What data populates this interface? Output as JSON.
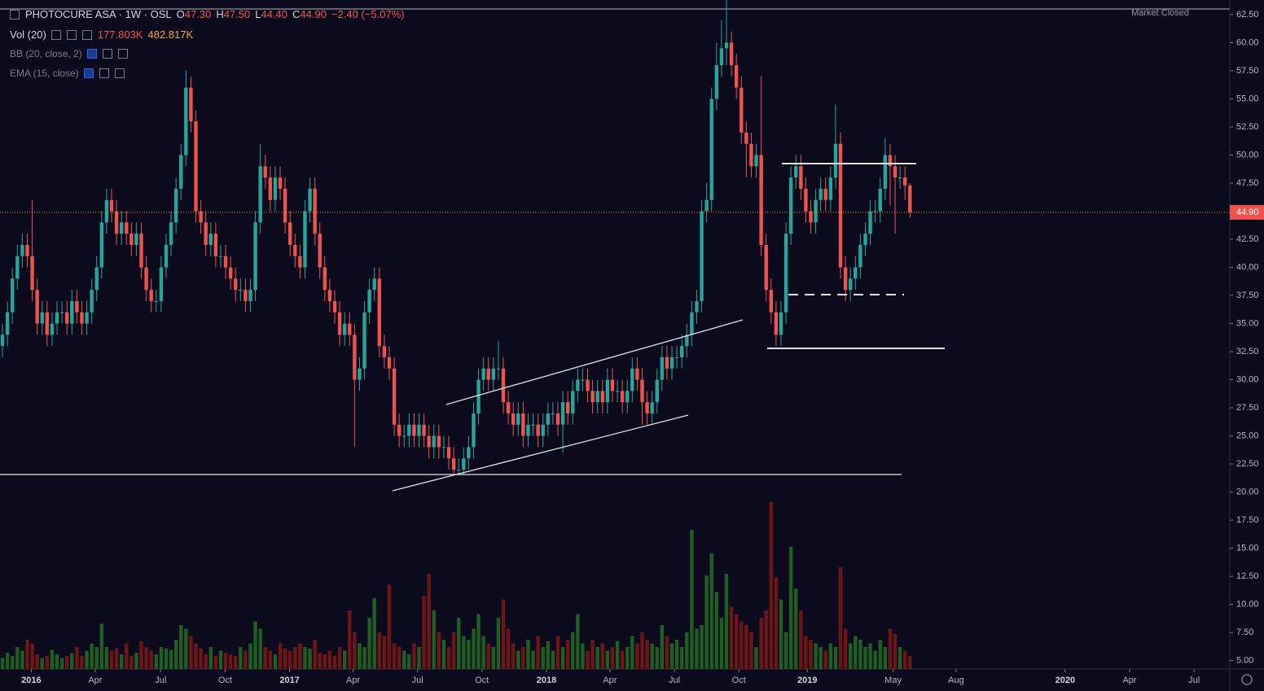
{
  "chart_data": {
    "type": "candlestick",
    "title": "PHOTOCURE ASA · 1W · OSL",
    "legend": {
      "open_key": "O",
      "open": "47.30",
      "high_key": "H",
      "high": "47.50",
      "low_key": "L",
      "low": "44.40",
      "close_key": "C",
      "close": "44.90",
      "change": "−2.40 (−5.07%)",
      "volume_indicator": "Vol (20)",
      "volume_value": "177.803K",
      "volume_ma": "482.817K",
      "bb_indicator": "BB (20, close, 2)",
      "ema_indicator": "EMA (15, close)"
    },
    "status": "Market Closed",
    "last_price_label": "44.90",
    "up_color": "#26a69a",
    "down_color": "#ef5350",
    "volume_up_color": "#1f5e22",
    "volume_down_color": "#6e1616",
    "open": [
      33,
      34,
      36,
      39,
      41,
      42,
      41,
      38,
      35,
      36,
      34,
      35,
      36,
      36,
      35,
      37,
      36,
      35,
      36,
      38,
      40,
      44,
      46,
      45,
      43,
      44,
      43,
      42,
      43,
      40,
      38,
      37,
      37,
      40,
      42,
      44,
      47,
      50,
      56,
      53,
      45,
      44,
      42,
      43,
      41,
      41,
      40,
      39,
      38,
      38,
      37,
      38,
      44,
      49,
      48,
      46,
      48,
      47,
      44,
      42,
      41,
      40,
      45,
      47,
      43,
      40,
      38,
      37,
      36,
      34,
      35,
      34,
      30,
      31,
      36,
      38,
      39,
      33,
      32,
      31,
      26,
      25,
      25,
      26,
      25,
      26,
      25,
      24,
      25,
      24,
      24,
      23,
      22,
      22,
      23,
      24,
      27,
      30,
      31,
      30,
      31,
      31,
      28,
      27,
      26,
      27,
      25,
      26,
      26,
      25,
      26,
      27,
      27,
      26,
      28,
      27,
      29,
      30,
      30,
      29,
      28,
      29,
      28,
      30,
      29,
      29,
      28,
      29,
      31,
      30,
      28,
      27,
      28,
      30,
      32,
      31,
      32,
      32,
      33,
      34,
      36,
      37,
      45,
      46,
      55,
      58,
      59.5,
      60,
      58,
      56,
      52,
      51,
      49,
      50,
      42,
      38,
      36,
      34,
      36,
      43,
      48,
      49,
      47,
      45,
      44,
      46,
      47,
      46,
      48,
      51,
      40,
      38,
      39,
      40,
      42,
      43,
      45,
      45,
      47,
      50,
      49,
      48,
      48,
      47.3
    ],
    "high": [
      35,
      37,
      40,
      42,
      43,
      43,
      46,
      39,
      37,
      37,
      36,
      37,
      37,
      37,
      38,
      38,
      37,
      37,
      39,
      41,
      45,
      47,
      47,
      46,
      45,
      45,
      44,
      44,
      44,
      41,
      39,
      38,
      41,
      43,
      45,
      48,
      51,
      57.5,
      57,
      54,
      46,
      45,
      44,
      44,
      42,
      42,
      41,
      40,
      39,
      39,
      39,
      45,
      51,
      50,
      49,
      49,
      49,
      48,
      45,
      43,
      42,
      46,
      48,
      48,
      44,
      41,
      39,
      38,
      37,
      36,
      36,
      35,
      32,
      37,
      39,
      40,
      40,
      34,
      33,
      32,
      27,
      26,
      27,
      27,
      27,
      27,
      26,
      26,
      26,
      25,
      25,
      24,
      23,
      24,
      25,
      28,
      31,
      32,
      32,
      32,
      33.5,
      32,
      29,
      28,
      28,
      28,
      27,
      27,
      27,
      27,
      28,
      28,
      28,
      29,
      29,
      30,
      31,
      31,
      31,
      30,
      30,
      30,
      31,
      31,
      30,
      30,
      30,
      32,
      32,
      31,
      29,
      29,
      31,
      33,
      33,
      33,
      33,
      34,
      35,
      37,
      38,
      46,
      47.5,
      56,
      60,
      62,
      63.8,
      61,
      59,
      57,
      53,
      52,
      51,
      57,
      43,
      39,
      37,
      37,
      44,
      49,
      50,
      50,
      48,
      46,
      47,
      48,
      48,
      49,
      54.5,
      52,
      41,
      40,
      41,
      43,
      44,
      46,
      46,
      48,
      51.5,
      51,
      50,
      49,
      49,
      47.5
    ],
    "low": [
      32,
      33,
      35,
      38,
      40,
      40,
      37,
      34,
      34,
      33,
      33,
      34,
      35,
      34,
      34,
      35,
      34,
      34,
      35,
      37,
      39,
      43,
      44,
      42,
      42,
      42,
      41,
      41,
      39,
      37,
      36,
      36,
      36,
      39,
      41,
      43,
      46,
      49,
      52,
      44,
      43,
      41,
      41,
      40,
      40,
      39,
      38,
      37,
      37,
      36,
      36,
      37,
      43,
      47,
      45,
      45,
      46,
      43,
      41,
      40,
      39,
      39,
      44,
      42,
      39,
      37,
      36,
      35,
      33,
      33,
      33,
      24,
      29,
      30,
      35,
      37,
      32,
      31,
      30,
      25,
      24,
      24,
      24,
      24,
      24,
      24,
      23,
      23,
      23,
      23,
      22,
      21.5,
      21.5,
      21.5,
      22,
      23,
      26,
      29,
      29,
      29,
      30,
      27,
      26,
      25,
      25,
      24,
      24,
      25,
      24,
      24,
      25,
      26,
      25,
      23.5,
      26,
      26,
      28,
      29,
      28,
      27,
      27,
      27,
      27,
      28,
      28,
      27,
      27,
      28,
      29,
      26,
      26,
      26,
      27,
      29,
      30,
      30,
      31,
      31,
      32,
      33,
      35,
      36,
      44,
      45,
      54,
      57,
      58,
      57,
      55,
      51,
      48,
      48,
      48,
      41,
      37,
      35,
      33,
      33,
      35,
      42,
      47,
      46,
      44,
      43,
      43,
      45,
      45,
      45,
      47,
      39,
      37,
      37,
      38,
      39,
      41,
      42,
      44,
      44,
      46,
      45.5,
      43,
      47,
      46,
      44.4
    ],
    "close": [
      34,
      36,
      39,
      41,
      42,
      41,
      38,
      35,
      36,
      34,
      35,
      36,
      36,
      35,
      37,
      36,
      35,
      36,
      38,
      40,
      44,
      46,
      45,
      43,
      44,
      43,
      42,
      43,
      40,
      38,
      37,
      37,
      40,
      42,
      44,
      47,
      50,
      56,
      53,
      45,
      44,
      42,
      43,
      41,
      41,
      40,
      39,
      38,
      38,
      37,
      38,
      44,
      49,
      48,
      46,
      48,
      47,
      44,
      42,
      41,
      40,
      45,
      47,
      43,
      40,
      38,
      37,
      36,
      34,
      35,
      34,
      30,
      31,
      36,
      38,
      39,
      33,
      32,
      31,
      26,
      25,
      25,
      26,
      25,
      26,
      25,
      24,
      25,
      24,
      24,
      23,
      22,
      22,
      23,
      24,
      27,
      30,
      31,
      30,
      31,
      31,
      28,
      27,
      26,
      27,
      25,
      26,
      26,
      25,
      26,
      27,
      27,
      26,
      28,
      27,
      29,
      30,
      30,
      29,
      28,
      29,
      28,
      30,
      29,
      29,
      28,
      29,
      31,
      30,
      28,
      27,
      28,
      30,
      32,
      31,
      32,
      32,
      33,
      34,
      36,
      37,
      45,
      46,
      55,
      58,
      59.5,
      60,
      58,
      56,
      52,
      51,
      49,
      50,
      42,
      38,
      36,
      34,
      36,
      43,
      48,
      49,
      47,
      45,
      44,
      46,
      47,
      46,
      48,
      51,
      40,
      38,
      39,
      40,
      42,
      43,
      45,
      45,
      47,
      50,
      49,
      48,
      48,
      47.3,
      44.9
    ],
    "volume": [
      150,
      220,
      180,
      300,
      250,
      400,
      350,
      200,
      150,
      180,
      260,
      200,
      150,
      180,
      220,
      300,
      180,
      250,
      350,
      300,
      620,
      300,
      250,
      280,
      200,
      350,
      180,
      220,
      380,
      300,
      250,
      200,
      300,
      280,
      260,
      400,
      600,
      550,
      450,
      350,
      280,
      200,
      300,
      180,
      250,
      220,
      200,
      180,
      300,
      250,
      350,
      650,
      550,
      300,
      250,
      200,
      350,
      280,
      250,
      300,
      350,
      300,
      280,
      400,
      220,
      200,
      250,
      180,
      300,
      250,
      800,
      500,
      350,
      300,
      700,
      965,
      500,
      450,
      1150,
      350,
      300,
      250,
      200,
      350,
      300,
      1000,
      1300,
      800,
      500,
      400,
      300,
      500,
      700,
      450,
      400,
      550,
      750,
      450,
      350,
      300,
      700,
      950,
      550,
      350,
      250,
      300,
      400,
      250,
      450,
      300,
      380,
      250,
      450,
      300,
      400,
      500,
      750,
      350,
      250,
      400,
      300,
      350,
      250,
      300,
      380,
      250,
      300,
      450,
      350,
      500,
      400,
      350,
      300,
      600,
      450,
      350,
      400,
      300,
      500,
      1900,
      550,
      600,
      1280,
      1580,
      1050,
      700,
      1300,
      850,
      750,
      650,
      600,
      500,
      300,
      700,
      800,
      2280,
      1250,
      950,
      500,
      1670,
      1100,
      800,
      450,
      400,
      350,
      300,
      250,
      350,
      300,
      1390,
      550,
      350,
      450,
      400,
      300,
      350,
      250,
      400,
      300,
      550,
      480,
      300,
      250,
      177.803
    ],
    "vlim": [
      0,
      2500
    ],
    "xlim": [
      0,
      248
    ],
    "xticks": [
      {
        "value": 6.3,
        "label": "2016"
      },
      {
        "value": 19.2,
        "label": "Apr"
      },
      {
        "value": 32.4,
        "label": "Jul"
      },
      {
        "value": 45.4,
        "label": "Oct"
      },
      {
        "value": 58.4,
        "label": "2017"
      },
      {
        "value": 71.2,
        "label": "Apr"
      },
      {
        "value": 84.2,
        "label": "Jul"
      },
      {
        "value": 97.2,
        "label": "Oct"
      },
      {
        "value": 110.2,
        "label": "2018"
      },
      {
        "value": 123.0,
        "label": "Apr"
      },
      {
        "value": 136.0,
        "label": "Jul"
      },
      {
        "value": 149.0,
        "label": "Oct"
      },
      {
        "value": 162.8,
        "label": "2019"
      },
      {
        "value": 180.1,
        "label": "May"
      },
      {
        "value": 192.8,
        "label": "Aug"
      },
      {
        "value": 214.8,
        "label": "2020"
      },
      {
        "value": 227.8,
        "label": "Apr"
      },
      {
        "value": 240.8,
        "label": "Jul"
      }
    ],
    "ylim": [
      4.25,
      63.8
    ],
    "yticks": [
      {
        "value": 5,
        "label": "5.00"
      },
      {
        "value": 7.5,
        "label": "7.50"
      },
      {
        "value": 10,
        "label": "10.00"
      },
      {
        "value": 12.5,
        "label": "12.50"
      },
      {
        "value": 15,
        "label": "15.00"
      },
      {
        "value": 17.5,
        "label": "17.50"
      },
      {
        "value": 20,
        "label": "20.00"
      },
      {
        "value": 22.5,
        "label": "22.50"
      },
      {
        "value": 25,
        "label": "25.00"
      },
      {
        "value": 27.5,
        "label": "27.50"
      },
      {
        "value": 30,
        "label": "30.00"
      },
      {
        "value": 32.5,
        "label": "32.50"
      },
      {
        "value": 35,
        "label": "35.00"
      },
      {
        "value": 37.5,
        "label": "37.50"
      },
      {
        "value": 40,
        "label": "40.00"
      },
      {
        "value": 42.5,
        "label": "42.50"
      },
      {
        "value": 45,
        "label": "45.00"
      },
      {
        "value": 47.5,
        "label": "47.50"
      },
      {
        "value": 50,
        "label": "50.00"
      },
      {
        "value": 52.5,
        "label": "52.50"
      },
      {
        "value": 55,
        "label": "55.00"
      },
      {
        "value": 57.5,
        "label": "57.50"
      },
      {
        "value": 60,
        "label": "60.00"
      },
      {
        "value": 62.5,
        "label": "62.50"
      }
    ],
    "grid": false
  }
}
